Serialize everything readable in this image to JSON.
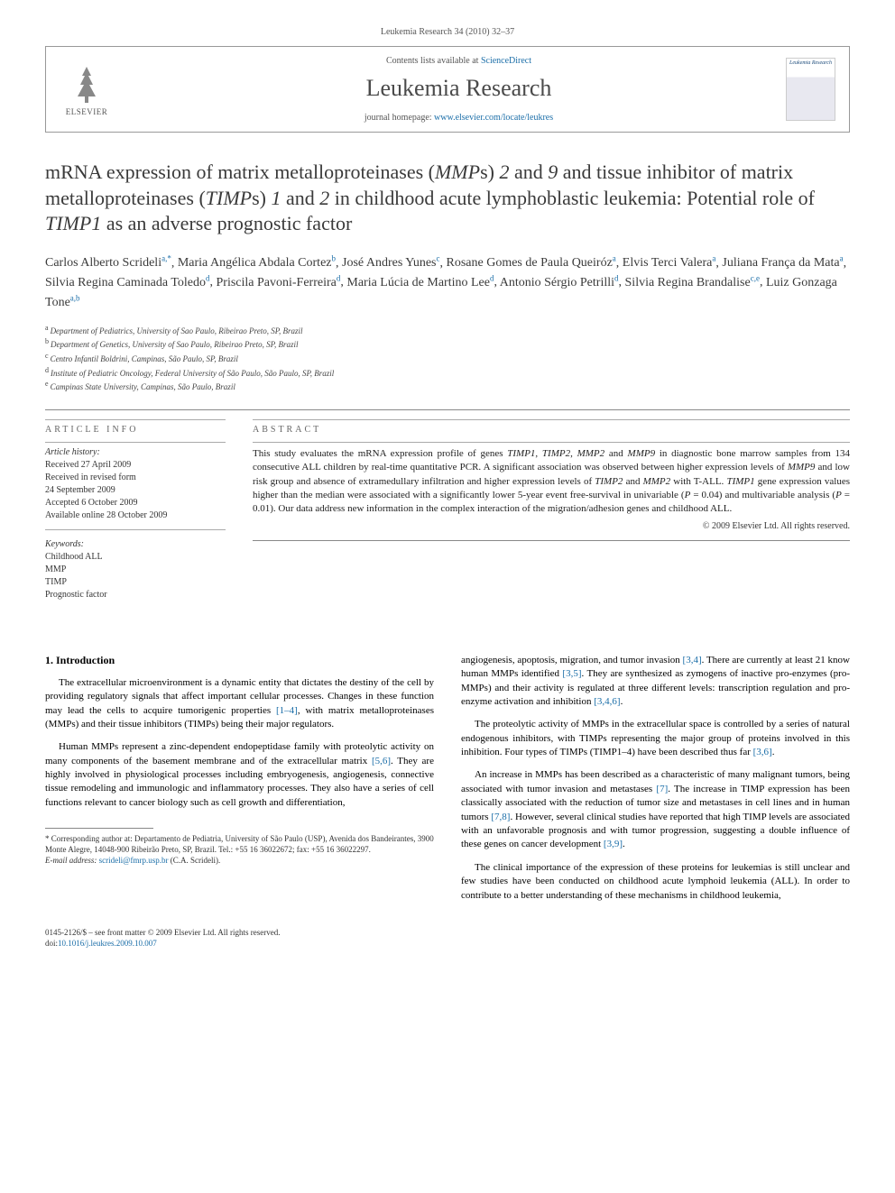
{
  "page_header": "Leukemia Research 34 (2010) 32–37",
  "journal_box": {
    "publisher": "ELSEVIER",
    "contents_prefix": "Contents lists available at ",
    "contents_link": "ScienceDirect",
    "journal_name": "Leukemia Research",
    "homepage_prefix": "journal homepage: ",
    "homepage_url": "www.elsevier.com/locate/leukres",
    "cover_title": "Leukemia Research"
  },
  "title_parts": {
    "p1": "mRNA expression of matrix metalloproteinases (",
    "i1": "MMP",
    "p2": "s) ",
    "i2": "2",
    "p3": " and ",
    "i3": "9",
    "p4": " and tissue inhibitor of matrix metalloproteinases (",
    "i4": "TIMP",
    "p5": "s) ",
    "i5": "1",
    "p6": " and ",
    "i6": "2",
    "p7": " in childhood acute lymphoblastic leukemia: Potential role of ",
    "i7": "TIMP1",
    "p8": " as an adverse prognostic factor"
  },
  "authors": [
    {
      "name": "Carlos Alberto Scrideli",
      "sup": "a,*"
    },
    {
      "name": "Maria Angélica Abdala Cortez",
      "sup": "b"
    },
    {
      "name": "José Andres Yunes",
      "sup": "c"
    },
    {
      "name": "Rosane Gomes de Paula Queiróz",
      "sup": "a"
    },
    {
      "name": "Elvis Terci Valera",
      "sup": "a"
    },
    {
      "name": "Juliana França da Mata",
      "sup": "a"
    },
    {
      "name": "Silvia Regina Caminada Toledo",
      "sup": "d"
    },
    {
      "name": "Priscila Pavoni-Ferreira",
      "sup": "d"
    },
    {
      "name": "Maria Lúcia de Martino Lee",
      "sup": "d"
    },
    {
      "name": "Antonio Sérgio Petrilli",
      "sup": "d"
    },
    {
      "name": "Silvia Regina Brandalise",
      "sup": "c,e"
    },
    {
      "name": "Luiz Gonzaga Tone",
      "sup": "a,b"
    }
  ],
  "affiliations": [
    {
      "sup": "a",
      "text": "Department of Pediatrics, University of Sao Paulo, Ribeirao Preto, SP, Brazil"
    },
    {
      "sup": "b",
      "text": "Department of Genetics, University of Sao Paulo, Ribeirao Preto, SP, Brazil"
    },
    {
      "sup": "c",
      "text": "Centro Infantil Boldrini, Campinas, São Paulo, SP, Brazil"
    },
    {
      "sup": "d",
      "text": "Institute of Pediatric Oncology, Federal University of São Paulo, São Paulo, SP, Brazil"
    },
    {
      "sup": "e",
      "text": "Campinas State University, Campinas, São Paulo, Brazil"
    }
  ],
  "article_info": {
    "heading": "ARTICLE INFO",
    "history_heading": "Article history:",
    "history": [
      "Received 27 April 2009",
      "Received in revised form",
      "24 September 2009",
      "Accepted 6 October 2009",
      "Available online 28 October 2009"
    ],
    "keywords_heading": "Keywords:",
    "keywords": [
      "Childhood ALL",
      "MMP",
      "TIMP",
      "Prognostic factor"
    ]
  },
  "abstract": {
    "heading": "ABSTRACT",
    "text_parts": {
      "p1": "This study evaluates the mRNA expression profile of genes ",
      "i1": "TIMP1",
      "c1": ", ",
      "i2": "TIMP2",
      "c2": ", ",
      "i3": "MMP2",
      "p2": " and ",
      "i4": "MMP9",
      "p3": " in diagnostic bone marrow samples from 134 consecutive ALL children by real-time quantitative PCR. A significant association was observed between higher expression levels of ",
      "i5": "MMP9",
      "p4": " and low risk group and absence of extramedullary infiltration and higher expression levels of ",
      "i6": "TIMP2",
      "p5": " and ",
      "i7": "MMP2",
      "p6": " with T-ALL. ",
      "i8": "TIMP1",
      "p7": " gene expression values higher than the median were associated with a significantly lower 5-year event free-survival in univariable (",
      "i9": "P",
      "p8": " = 0.04) and multivariable analysis (",
      "i10": "P",
      "p9": " = 0.01). Our data address new information in the complex interaction of the migration/adhesion genes and childhood ALL."
    },
    "copyright": "© 2009 Elsevier Ltd. All rights reserved."
  },
  "intro": {
    "heading": "1. Introduction",
    "left_paras": [
      {
        "text": "The extracellular microenvironment is a dynamic entity that dictates the destiny of the cell by providing regulatory signals that affect important cellular processes. Changes in these function may lead the cells to acquire tumorigenic properties ",
        "ref": "[1–4]",
        "tail": ", with matrix metalloproteinases (MMPs) and their tissue inhibitors (TIMPs) being their major regulators."
      },
      {
        "text": "Human MMPs represent a zinc-dependent endopeptidase family with proteolytic activity on many components of the basement membrane and of the extracellular matrix ",
        "ref": "[5,6]",
        "tail": ". They are highly involved in physiological processes including embryogenesis, angiogenesis, connective tissue remodeling and immunologic and inflammatory processes. They also have a series of cell functions relevant to cancer biology such as cell growth and differentiation,"
      }
    ],
    "right_paras": [
      {
        "text": "angiogenesis, apoptosis, migration, and tumor invasion ",
        "ref": "[3,4]",
        "tail": ". There are currently at least 21 know human MMPs identified ",
        "ref2": "[3,5]",
        "tail2": ". They are synthesized as zymogens of inactive pro-enzymes (pro-MMPs) and their activity is regulated at three different levels: transcription regulation and pro-enzyme activation and inhibition ",
        "ref3": "[3,4,6]",
        "tail3": "."
      },
      {
        "text": "The proteolytic activity of MMPs in the extracellular space is controlled by a series of natural endogenous inhibitors, with TIMPs representing the major group of proteins involved in this inhibition. Four types of TIMPs (TIMP1–4) have been described thus far ",
        "ref": "[3,6]",
        "tail": "."
      },
      {
        "text": "An increase in MMPs has been described as a characteristic of many malignant tumors, being associated with tumor invasion and metastases ",
        "ref": "[7]",
        "tail": ". The increase in TIMP expression has been classically associated with the reduction of tumor size and metastases in cell lines and in human tumors ",
        "ref2": "[7,8]",
        "tail2": ". However, several clinical studies have reported that high TIMP levels are associated with an unfavorable prognosis and with tumor progression, suggesting a double influence of these genes on cancer development ",
        "ref3": "[3,9]",
        "tail3": "."
      },
      {
        "text": "The clinical importance of the expression of these proteins for leukemias is still unclear and few studies have been conducted on childhood acute lymphoid leukemia (ALL). In order to contribute to a better understanding of these mechanisms in childhood leukemia,",
        "ref": "",
        "tail": ""
      }
    ]
  },
  "footnote": {
    "star": "*",
    "corr_label": " Corresponding author at: Departamento de Pediatria, University of São Paulo (USP), Avenida dos Bandeirantes, 3900 Monte Alegre, 14048-900 Ribeirão Preto, SP, Brazil. Tel.: +55 16 36022672; fax: +55 16 36022297.",
    "email_label": "E-mail address: ",
    "email": "scrideli@fmrp.usp.br",
    "email_tail": " (C.A. Scrideli)."
  },
  "bottom": {
    "front_matter": "0145-2126/$ – see front matter © 2009 Elsevier Ltd. All rights reserved.",
    "doi_label": "doi:",
    "doi": "10.1016/j.leukres.2009.10.007"
  },
  "colors": {
    "link": "#1b6ea8",
    "text": "#000000",
    "heading_gray": "#3a3a3a",
    "border": "#999999"
  }
}
